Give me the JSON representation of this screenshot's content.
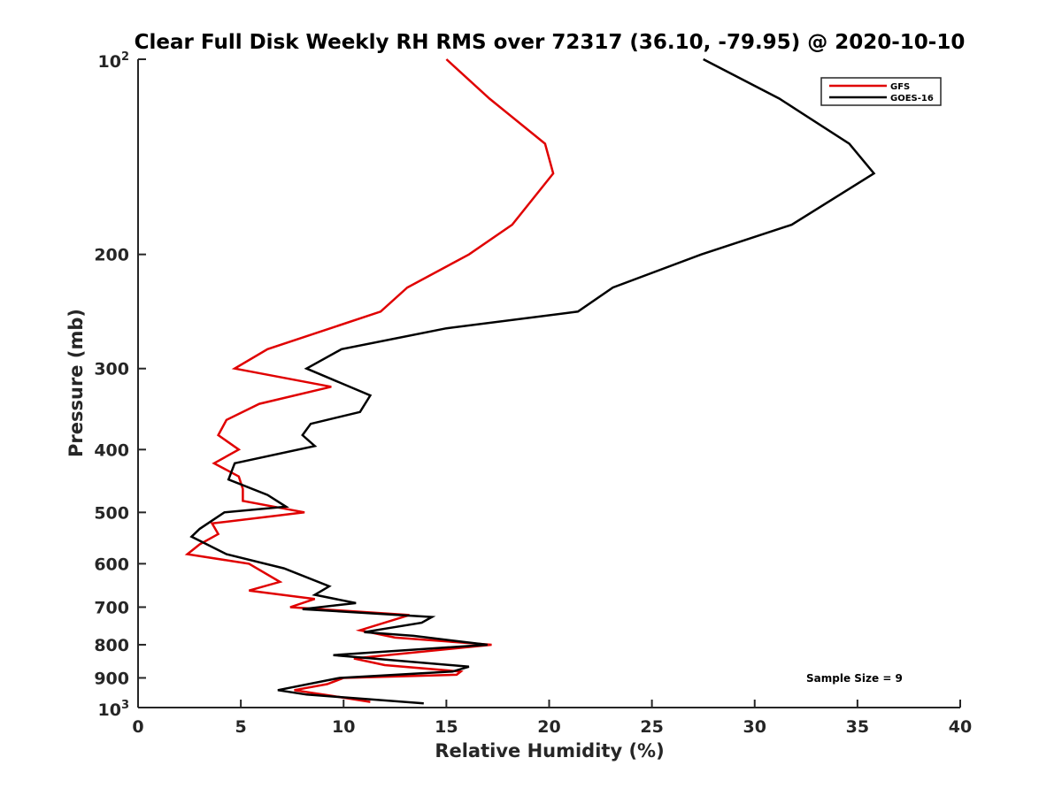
{
  "chart_data": {
    "type": "line",
    "title": "Clear Full Disk Weekly RH RMS over 72317 (36.10, -79.95) @ 2020-10-10",
    "xlabel": "Relative Humidity (%)",
    "ylabel": "Pressure (mb)",
    "xlim": [
      0,
      40
    ],
    "ylim": [
      100,
      1000
    ],
    "y_scale": "log",
    "y_reversed": true,
    "grid": false,
    "legend_position": "top-right",
    "x_ticks": [
      "0",
      "5",
      "10",
      "15",
      "20",
      "25",
      "30",
      "35",
      "40"
    ],
    "y_ticks": [
      {
        "value": 100,
        "base": "10",
        "exp": "2"
      },
      {
        "value": 200,
        "label": "200"
      },
      {
        "value": 300,
        "label": "300"
      },
      {
        "value": 400,
        "label": "400"
      },
      {
        "value": 500,
        "label": "500"
      },
      {
        "value": 600,
        "label": "600"
      },
      {
        "value": 700,
        "label": "700"
      },
      {
        "value": 800,
        "label": "800"
      },
      {
        "value": 900,
        "label": "900"
      },
      {
        "value": 1000,
        "base": "10",
        "exp": "3"
      }
    ],
    "annotation": "Sample Size = 9",
    "series": [
      {
        "name": "GFS",
        "color": "#e00000",
        "points": [
          [
            15.0,
            100
          ],
          [
            17.1,
            115
          ],
          [
            19.8,
            135
          ],
          [
            20.2,
            150
          ],
          [
            18.2,
            180
          ],
          [
            16.1,
            200
          ],
          [
            13.1,
            225
          ],
          [
            11.8,
            245
          ],
          [
            6.3,
            280
          ],
          [
            4.7,
            300
          ],
          [
            9.4,
            320
          ],
          [
            5.9,
            340
          ],
          [
            4.3,
            360
          ],
          [
            3.9,
            380
          ],
          [
            4.9,
            400
          ],
          [
            3.7,
            420
          ],
          [
            4.9,
            440
          ],
          [
            5.1,
            460
          ],
          [
            5.1,
            480
          ],
          [
            8.1,
            500
          ],
          [
            3.6,
            520
          ],
          [
            3.9,
            540
          ],
          [
            3.0,
            560
          ],
          [
            2.4,
            580
          ],
          [
            5.4,
            600
          ],
          [
            6.9,
            640
          ],
          [
            5.4,
            660
          ],
          [
            8.6,
            680
          ],
          [
            7.4,
            700
          ],
          [
            13.2,
            720
          ],
          [
            10.8,
            760
          ],
          [
            12.5,
            780
          ],
          [
            17.2,
            800
          ],
          [
            10.5,
            840
          ],
          [
            12.0,
            860
          ],
          [
            15.7,
            880
          ],
          [
            15.5,
            890
          ],
          [
            10.0,
            900
          ],
          [
            9.2,
            920
          ],
          [
            7.6,
            940
          ],
          [
            9.5,
            960
          ],
          [
            11.3,
            980
          ]
        ]
      },
      {
        "name": "GOES-16",
        "color": "#000000",
        "points": [
          [
            27.5,
            100
          ],
          [
            31.2,
            115
          ],
          [
            34.6,
            135
          ],
          [
            35.8,
            150
          ],
          [
            31.8,
            180
          ],
          [
            27.4,
            200
          ],
          [
            23.1,
            225
          ],
          [
            21.4,
            245
          ],
          [
            15.0,
            260
          ],
          [
            9.9,
            280
          ],
          [
            8.2,
            300
          ],
          [
            11.3,
            330
          ],
          [
            10.8,
            350
          ],
          [
            8.4,
            365
          ],
          [
            8.0,
            380
          ],
          [
            8.6,
            395
          ],
          [
            4.7,
            420
          ],
          [
            4.4,
            445
          ],
          [
            6.3,
            470
          ],
          [
            7.2,
            490
          ],
          [
            4.2,
            500
          ],
          [
            3.0,
            530
          ],
          [
            2.6,
            545
          ],
          [
            4.3,
            580
          ],
          [
            7.1,
            610
          ],
          [
            9.3,
            650
          ],
          [
            8.6,
            670
          ],
          [
            10.6,
            690
          ],
          [
            8.0,
            705
          ],
          [
            14.3,
            725
          ],
          [
            13.8,
            740
          ],
          [
            11.0,
            765
          ],
          [
            13.4,
            775
          ],
          [
            17.0,
            800
          ],
          [
            9.5,
            830
          ],
          [
            16.1,
            865
          ],
          [
            15.3,
            880
          ],
          [
            9.8,
            900
          ],
          [
            6.8,
            940
          ],
          [
            8.2,
            955
          ],
          [
            13.9,
            985
          ]
        ]
      }
    ]
  }
}
